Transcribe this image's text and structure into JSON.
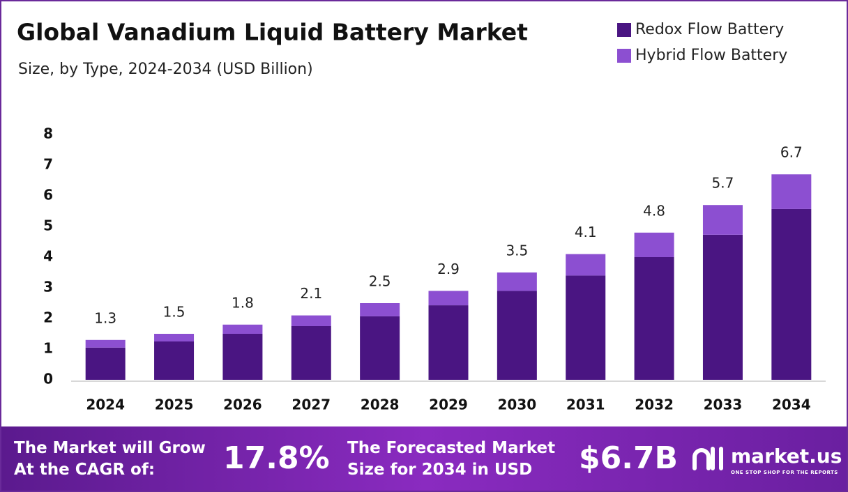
{
  "chart_data": {
    "type": "stacked-bar",
    "title": "Global Vanadium Liquid Battery Market",
    "subtitle": "Size, by Type, 2024-2034 (USD Billion)",
    "categories": [
      "2024",
      "2025",
      "2026",
      "2027",
      "2028",
      "2029",
      "2030",
      "2031",
      "2032",
      "2033",
      "2034"
    ],
    "series": [
      {
        "name": "Redox Flow Battery",
        "color": "#4a1582",
        "values": [
          1.05,
          1.25,
          1.5,
          1.75,
          2.07,
          2.43,
          2.9,
          3.4,
          4.0,
          4.73,
          5.57
        ]
      },
      {
        "name": "Hybrid Flow Battery",
        "color": "#8c4fd1",
        "values": [
          0.25,
          0.25,
          0.3,
          0.35,
          0.43,
          0.47,
          0.6,
          0.7,
          0.8,
          0.97,
          1.13
        ]
      }
    ],
    "totals": [
      1.3,
      1.5,
      1.8,
      2.1,
      2.5,
      2.9,
      3.5,
      4.1,
      4.8,
      5.7,
      6.7
    ],
    "ylim": [
      0,
      8
    ],
    "yticks": [
      0,
      1,
      2,
      3,
      4,
      5,
      6,
      7,
      8
    ],
    "grid": false,
    "legend": "top-right"
  },
  "footer": {
    "cagr_text": "The Market will Grow At the CAGR of:",
    "cagr": "17.8%",
    "forecast_text": "The Forecasted Market Size for 2034 in USD",
    "forecast": "$6.7B",
    "brand": "market.us",
    "tagline": "ONE STOP SHOP FOR THE REPORTS"
  }
}
